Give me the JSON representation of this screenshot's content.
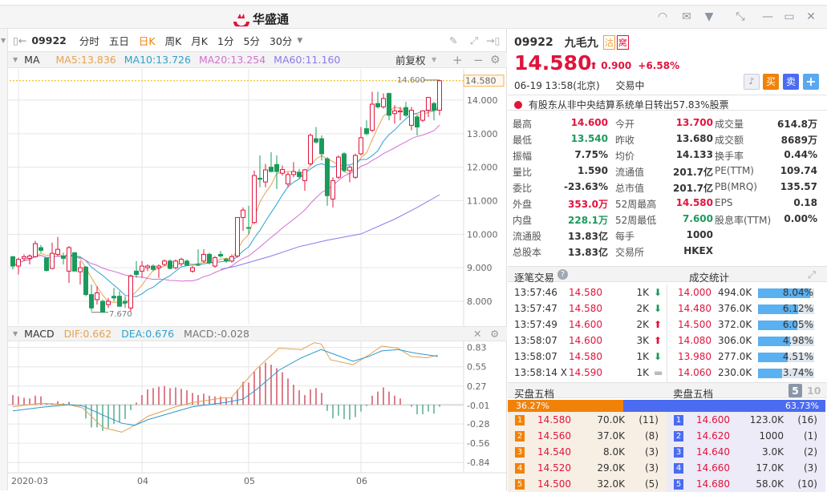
{
  "app": {
    "logo_text": "华盛通",
    "colors": {
      "up": "#e0143c",
      "down": "#1a9b5b",
      "buy": "#f0820a",
      "sell": "#4b6cf0"
    }
  },
  "window_icons": [
    "headset-icon",
    "mail-icon",
    "shirt-icon",
    "shrink-icon",
    "minimize-icon",
    "maximize-icon",
    "close-icon"
  ],
  "toolbar": {
    "code": "09922",
    "periods": [
      "分时",
      "五日",
      "日K",
      "周K",
      "月K",
      "1分",
      "5分",
      "30分"
    ],
    "active": "日K"
  },
  "ma": {
    "label": "MA",
    "ma5": "MA5:13.836",
    "ma10": "MA10:13.726",
    "ma20": "MA20:13.254",
    "ma60": "MA60:11.160",
    "adjust": "前复权"
  },
  "macd_header": {
    "label": "MACD",
    "dif": "DIF:0.662",
    "dea": "DEA:0.676",
    "macd": "MACD:-0.028"
  },
  "chart_data": [
    {
      "type": "candlestick",
      "ylim": [
        7.4,
        14.9
      ],
      "y_ticks": [
        "14.000",
        "13.000",
        "12.000",
        "11.000",
        "10.000",
        "9.000",
        "8.000"
      ],
      "x_ticks": [
        "2020-03",
        "04",
        "05",
        "06"
      ],
      "x_tick_index": [
        1,
        23,
        42,
        62
      ],
      "last_price_label": "14.580",
      "high_label": "14.600",
      "low_label": "7.670",
      "colors": {
        "ma5": "#e8a24c",
        "ma10": "#2aa3cf",
        "ma20": "#d46fd4",
        "ma60": "#8a7be8"
      },
      "candles": [
        [
          9.33,
          9.35,
          8.95,
          9.05
        ],
        [
          9.05,
          9.3,
          8.8,
          9.25
        ],
        [
          9.27,
          9.4,
          9.2,
          9.33
        ],
        [
          9.28,
          9.4,
          9.1,
          9.35
        ],
        [
          9.33,
          9.8,
          9.3,
          9.72
        ],
        [
          9.6,
          9.68,
          9.45,
          9.52
        ],
        [
          9.29,
          9.3,
          8.88,
          8.92
        ],
        [
          8.98,
          9.75,
          8.95,
          9.43
        ],
        [
          9.4,
          9.92,
          9.35,
          9.55
        ],
        [
          9.35,
          9.45,
          9.1,
          9.28
        ],
        [
          8.9,
          9.65,
          8.55,
          9.6
        ],
        [
          9.45,
          9.45,
          8.9,
          8.9
        ],
        [
          8.88,
          9.2,
          8.5,
          9.0
        ],
        [
          9.02,
          9.05,
          8.15,
          8.2
        ],
        [
          8.2,
          8.5,
          7.7,
          7.8
        ],
        [
          8.05,
          8.45,
          7.9,
          8.25
        ],
        [
          8.0,
          8.05,
          7.67,
          7.68
        ],
        [
          7.9,
          8.1,
          7.8,
          8.0
        ],
        [
          8.15,
          8.4,
          8.0,
          8.1
        ],
        [
          8.15,
          8.3,
          7.85,
          7.85
        ],
        [
          8.0,
          8.15,
          7.8,
          7.95
        ],
        [
          7.8,
          8.8,
          7.7,
          8.75
        ],
        [
          8.9,
          9.2,
          8.7,
          8.8
        ],
        [
          8.9,
          9.2,
          8.7,
          9.05
        ],
        [
          9.0,
          9.1,
          8.9,
          9.05
        ],
        [
          9.05,
          9.1,
          8.9,
          8.95
        ],
        [
          9.0,
          9.1,
          8.7,
          9.05
        ],
        [
          9.1,
          9.25,
          9.05,
          9.2
        ],
        [
          9.2,
          9.25,
          8.95,
          8.98
        ],
        [
          9.0,
          9.25,
          8.95,
          9.2
        ],
        [
          9.12,
          9.3,
          9.05,
          9.25
        ],
        [
          9.2,
          9.25,
          9.05,
          9.08
        ],
        [
          8.9,
          9.05,
          8.85,
          9.0
        ],
        [
          9.1,
          9.55,
          9.05,
          9.08
        ],
        [
          9.2,
          9.55,
          9.15,
          9.4
        ],
        [
          9.4,
          9.45,
          9.1,
          9.15
        ],
        [
          9.05,
          9.35,
          9.0,
          9.3
        ],
        [
          9.4,
          9.5,
          9.3,
          9.35
        ],
        [
          9.25,
          9.3,
          9.15,
          9.2
        ],
        [
          9.2,
          9.4,
          9.15,
          9.33
        ],
        [
          9.35,
          10.5,
          9.3,
          10.5
        ],
        [
          10.5,
          10.8,
          10.1,
          10.72
        ],
        [
          10.2,
          10.85,
          10.0,
          10.18
        ],
        [
          10.35,
          11.9,
          10.3,
          11.75
        ],
        [
          11.67,
          12.35,
          11.4,
          11.64
        ],
        [
          11.56,
          12.1,
          11.4,
          11.92
        ],
        [
          12.0,
          12.45,
          11.85,
          11.87
        ],
        [
          12.08,
          12.35,
          11.35,
          11.87
        ],
        [
          11.82,
          12.05,
          11.75,
          11.93
        ],
        [
          11.5,
          11.85,
          11.4,
          11.78
        ],
        [
          11.78,
          12.15,
          11.7,
          11.87
        ],
        [
          11.85,
          11.95,
          11.65,
          11.72
        ],
        [
          11.6,
          11.95,
          11.3,
          11.92
        ],
        [
          12.1,
          13.0,
          12.05,
          12.95
        ],
        [
          12.85,
          13.2,
          12.7,
          12.75
        ],
        [
          12.85,
          12.95,
          12.2,
          12.4
        ],
        [
          12.25,
          12.3,
          10.85,
          11.15
        ],
        [
          11.05,
          11.7,
          10.8,
          11.6
        ],
        [
          11.7,
          12.35,
          11.65,
          12.3
        ],
        [
          12.4,
          12.45,
          11.85,
          11.9
        ],
        [
          11.9,
          12.05,
          11.55,
          12.0
        ],
        [
          11.7,
          12.4,
          11.65,
          12.35
        ],
        [
          12.4,
          13.2,
          12.35,
          12.88
        ],
        [
          13.15,
          13.4,
          12.95,
          13.0
        ],
        [
          13.1,
          14.25,
          13.05,
          13.88
        ],
        [
          13.9,
          14.25,
          13.75,
          13.8
        ],
        [
          13.8,
          14.2,
          13.75,
          14.05
        ],
        [
          14.2,
          14.22,
          13.4,
          13.55
        ],
        [
          13.6,
          13.85,
          13.3,
          13.68
        ],
        [
          13.65,
          13.8,
          13.4,
          13.68
        ],
        [
          13.78,
          13.95,
          13.5,
          13.55
        ],
        [
          13.25,
          13.8,
          13.1,
          13.7
        ],
        [
          13.5,
          13.55,
          12.95,
          13.2
        ],
        [
          13.4,
          13.7,
          13.35,
          13.68
        ],
        [
          13.7,
          14.1,
          13.5,
          14.08
        ],
        [
          13.9,
          13.95,
          13.4,
          13.7
        ],
        [
          13.7,
          14.6,
          13.55,
          14.58
        ]
      ],
      "ma60": [
        [
          37,
          8.95
        ],
        [
          40,
          9.06
        ],
        [
          46,
          9.35
        ],
        [
          51,
          9.63
        ],
        [
          56,
          9.82
        ],
        [
          62,
          10.01
        ],
        [
          68,
          10.45
        ],
        [
          72,
          10.8
        ],
        [
          76,
          11.18
        ]
      ]
    },
    {
      "type": "macd",
      "y_ticks": [
        "0.83",
        "0.55",
        "0.27",
        "-0.01",
        "-0.28",
        "-0.56",
        "-0.84"
      ],
      "histogram": [
        0.14,
        0.12,
        0.1,
        0.09,
        0.13,
        0.12,
        0.02,
        0.02,
        0.05,
        0.02,
        0.04,
        0.0,
        -0.01,
        -0.2,
        -0.33,
        -0.33,
        -0.38,
        -0.34,
        -0.28,
        -0.26,
        -0.21,
        -0.08,
        0.03,
        0.14,
        0.22,
        0.24,
        0.26,
        0.27,
        0.24,
        0.25,
        0.23,
        0.21,
        0.17,
        0.14,
        0.16,
        0.13,
        0.12,
        0.12,
        0.1,
        0.11,
        0.22,
        0.33,
        0.32,
        0.48,
        0.55,
        0.61,
        0.58,
        0.53,
        0.47,
        0.38,
        0.29,
        0.21,
        0.14,
        0.22,
        0.24,
        0.17,
        -0.09,
        -0.2,
        -0.16,
        -0.21,
        -0.22,
        -0.18,
        -0.1,
        -0.02,
        0.13,
        0.19,
        0.25,
        0.19,
        0.13,
        0.09,
        0.0,
        -0.03,
        -0.14,
        -0.14,
        -0.1,
        -0.13,
        -0.03
      ],
      "dif": [
        [
          0,
          -0.03
        ],
        [
          5,
          0.02
        ],
        [
          10,
          0.0
        ],
        [
          12.5,
          -0.05
        ],
        [
          16,
          -0.33
        ],
        [
          19.4,
          -0.4
        ],
        [
          21.7,
          -0.3
        ],
        [
          24,
          -0.17
        ],
        [
          29,
          -0.03
        ],
        [
          32,
          0.03
        ],
        [
          37.7,
          0.1
        ],
        [
          38.9,
          0.1
        ],
        [
          41,
          0.3
        ],
        [
          43.4,
          0.52
        ],
        [
          47.4,
          0.82
        ],
        [
          51.4,
          0.8
        ],
        [
          53.7,
          0.9
        ],
        [
          54.9,
          0.88
        ],
        [
          56.6,
          0.65
        ],
        [
          60.6,
          0.58
        ],
        [
          63.4,
          0.72
        ],
        [
          65.7,
          0.85
        ],
        [
          68.6,
          0.82
        ],
        [
          70.9,
          0.7
        ],
        [
          73.7,
          0.68
        ],
        [
          75.7,
          0.72
        ]
      ],
      "dea": [
        [
          0,
          -0.09
        ],
        [
          5,
          -0.04
        ],
        [
          10,
          0.0
        ],
        [
          12.5,
          -0.02
        ],
        [
          16,
          -0.15
        ],
        [
          19.4,
          -0.27
        ],
        [
          21.7,
          -0.3
        ],
        [
          24,
          -0.22
        ],
        [
          29,
          -0.1
        ],
        [
          32,
          -0.03
        ],
        [
          37.7,
          0.03
        ],
        [
          41,
          0.08
        ],
        [
          43.4,
          0.22
        ],
        [
          47.4,
          0.5
        ],
        [
          51.4,
          0.68
        ],
        [
          54.9,
          0.8
        ],
        [
          56.6,
          0.75
        ],
        [
          60.6,
          0.63
        ],
        [
          63.4,
          0.7
        ],
        [
          65.7,
          0.78
        ],
        [
          68.6,
          0.8
        ],
        [
          71.5,
          0.75
        ],
        [
          75.7,
          0.7
        ]
      ]
    }
  ],
  "quote": {
    "code": "09922",
    "name": "九毛九",
    "badge1": "沽",
    "badge2": "窝",
    "price": "14.580",
    "change": "0.900",
    "change_pct": "+6.58%",
    "datetime": "06-19  13:58(北京)",
    "status": "交易中",
    "buy_btn": "买",
    "sell_btn": "卖",
    "add_btn": "+",
    "notice": "有股东从非中央结算系统单日转出57.83%股票"
  },
  "stats": [
    [
      {
        "k": "最高",
        "v": "14.600",
        "c": "red"
      },
      {
        "k": "今开",
        "v": "13.700",
        "c": "red"
      },
      {
        "k": "成交量",
        "v": "614.8万"
      }
    ],
    [
      {
        "k": "最低",
        "v": "13.540",
        "c": "green"
      },
      {
        "k": "昨收",
        "v": "13.680"
      },
      {
        "k": "成交额",
        "v": "8689万"
      }
    ],
    [
      {
        "k": "振幅",
        "v": "7.75%"
      },
      {
        "k": "均价",
        "v": "14.133"
      },
      {
        "k": "换手率",
        "v": "0.44%"
      }
    ],
    [
      {
        "k": "量比",
        "v": "1.590"
      },
      {
        "k": "流通值",
        "v": "201.7亿"
      },
      {
        "k": "PE(TTM)",
        "v": "109.74"
      }
    ],
    [
      {
        "k": "委比",
        "v": "-23.63%"
      },
      {
        "k": "总市值",
        "v": "201.7亿"
      },
      {
        "k": "PB(MRQ)",
        "v": "135.57"
      }
    ],
    [
      {
        "k": "外盘",
        "v": "353.0万",
        "c": "red"
      },
      {
        "k": "52周最高",
        "v": "14.580",
        "c": "red"
      },
      {
        "k": "EPS",
        "v": "0.18"
      }
    ],
    [
      {
        "k": "内盘",
        "v": "228.1万",
        "c": "green"
      },
      {
        "k": "52周最低",
        "v": "7.600",
        "c": "green"
      },
      {
        "k": "股息率(TTM)",
        "v": "0.00%"
      }
    ],
    [
      {
        "k": "流通股",
        "v": "13.83亿"
      },
      {
        "k": "每手",
        "v": "1000"
      }
    ],
    [
      {
        "k": "总股本",
        "v": "13.83亿"
      },
      {
        "k": "交易所",
        "v": "HKEX"
      }
    ]
  ],
  "ticks": {
    "title": "逐笔交易",
    "stats_title": "成交统计",
    "rows": [
      {
        "time": "13:57:46",
        "price": "14.580",
        "vol": "1K",
        "dir": "down"
      },
      {
        "time": "13:57:47",
        "price": "14.580",
        "vol": "2K",
        "dir": "down"
      },
      {
        "time": "13:57:49",
        "price": "14.600",
        "vol": "2K",
        "dir": "up"
      },
      {
        "time": "13:58:07",
        "price": "14.600",
        "vol": "3K",
        "dir": "up"
      },
      {
        "time": "13:58:07",
        "price": "14.580",
        "vol": "1K",
        "dir": "down"
      },
      {
        "time": "13:58:14 X",
        "price": "14.590",
        "vol": "1K",
        "dir": "flat"
      }
    ],
    "volume_stats": [
      {
        "price": "14.000",
        "vol": "494.0K",
        "pct": "8.04%",
        "v": 8.04
      },
      {
        "price": "14.480",
        "vol": "376.0K",
        "pct": "6.12%",
        "v": 6.12
      },
      {
        "price": "14.500",
        "vol": "372.0K",
        "pct": "6.05%",
        "v": 6.05
      },
      {
        "price": "14.080",
        "vol": "306.0K",
        "pct": "4.98%",
        "v": 4.98
      },
      {
        "price": "13.980",
        "vol": "277.0K",
        "pct": "4.51%",
        "v": 4.51
      },
      {
        "price": "14.060",
        "vol": "230.0K",
        "pct": "3.74%",
        "v": 3.74
      }
    ]
  },
  "orderbook": {
    "bid_title": "买盘五档",
    "ask_title": "卖盘五档",
    "depth5": "5",
    "depth10": "10",
    "bid_pct": "36.27%",
    "ask_pct": "63.73%",
    "bid_ratio": 36.27,
    "bids": [
      {
        "n": "1",
        "price": "14.580",
        "vol": "70.0K",
        "cnt": "(11)"
      },
      {
        "n": "2",
        "price": "14.560",
        "vol": "37.0K",
        "cnt": "(8)"
      },
      {
        "n": "3",
        "price": "14.540",
        "vol": "8.0K",
        "cnt": "(3)"
      },
      {
        "n": "4",
        "price": "14.520",
        "vol": "29.0K",
        "cnt": "(3)"
      },
      {
        "n": "5",
        "price": "14.500",
        "vol": "32.0K",
        "cnt": "(5)"
      }
    ],
    "asks": [
      {
        "n": "1",
        "price": "14.600",
        "vol": "123.0K",
        "cnt": "(16)"
      },
      {
        "n": "2",
        "price": "14.620",
        "vol": "1000",
        "cnt": "(1)"
      },
      {
        "n": "3",
        "price": "14.640",
        "vol": "3.0K",
        "cnt": "(2)"
      },
      {
        "n": "4",
        "price": "14.660",
        "vol": "17.0K",
        "cnt": "(3)"
      },
      {
        "n": "5",
        "price": "14.680",
        "vol": "58.0K",
        "cnt": "(10)"
      }
    ]
  }
}
